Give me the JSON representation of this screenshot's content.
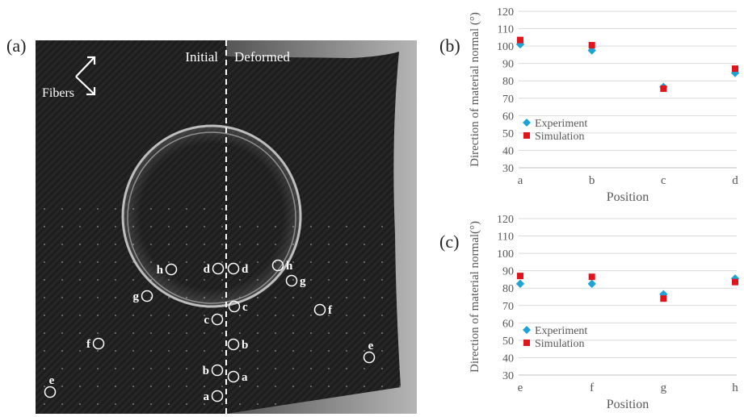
{
  "panels": {
    "a": "(a)",
    "b": "(b)",
    "c": "(c)"
  },
  "photo": {
    "label_initial": "Initial",
    "label_deformed": "Deformed",
    "label_fibers": "Fibers",
    "points": [
      {
        "label": "a",
        "side": "initial"
      },
      {
        "label": "b",
        "side": "initial"
      },
      {
        "label": "c",
        "side": "initial"
      },
      {
        "label": "d",
        "side": "initial"
      },
      {
        "label": "e",
        "side": "initial"
      },
      {
        "label": "f",
        "side": "initial"
      },
      {
        "label": "g",
        "side": "initial"
      },
      {
        "label": "h",
        "side": "initial"
      },
      {
        "label": "a",
        "side": "deformed"
      },
      {
        "label": "b",
        "side": "deformed"
      },
      {
        "label": "c",
        "side": "deformed"
      },
      {
        "label": "d",
        "side": "deformed"
      },
      {
        "label": "e",
        "side": "deformed"
      },
      {
        "label": "f",
        "side": "deformed"
      },
      {
        "label": "g",
        "side": "deformed"
      },
      {
        "label": "h",
        "side": "deformed"
      }
    ]
  },
  "colors": {
    "experiment": "#1fa3d6",
    "simulation": "#e0141a"
  },
  "chart_data": [
    {
      "type": "scatter",
      "panel": "(b)",
      "categories": [
        "a",
        "b",
        "c",
        "d"
      ],
      "ylabel": "Direction of material normal (°)",
      "xlabel": "Position",
      "ylim": [
        30,
        120
      ],
      "yticks": [
        30,
        40,
        50,
        60,
        70,
        80,
        90,
        100,
        110,
        120
      ],
      "grid": "horizontal",
      "legend_position": "bottom-left",
      "series": [
        {
          "name": "Experiment",
          "marker": "diamond",
          "values": [
            101,
            97.5,
            76.5,
            84.5
          ]
        },
        {
          "name": "Simulation",
          "marker": "square",
          "values": [
            103.5,
            100.5,
            75.5,
            87
          ]
        }
      ]
    },
    {
      "type": "scatter",
      "panel": "(c)",
      "categories": [
        "e",
        "f",
        "g",
        "h"
      ],
      "ylabel": "Direction of material normal(°)",
      "xlabel": "Position",
      "ylim": [
        30,
        120
      ],
      "yticks": [
        30,
        40,
        50,
        60,
        70,
        80,
        90,
        100,
        110,
        120
      ],
      "grid": "horizontal",
      "legend_position": "bottom-left",
      "series": [
        {
          "name": "Experiment",
          "marker": "diamond",
          "values": [
            82.5,
            82.5,
            76.5,
            85.5
          ]
        },
        {
          "name": "Simulation",
          "marker": "square",
          "values": [
            87,
            86.5,
            74,
            83.5
          ]
        }
      ]
    }
  ]
}
